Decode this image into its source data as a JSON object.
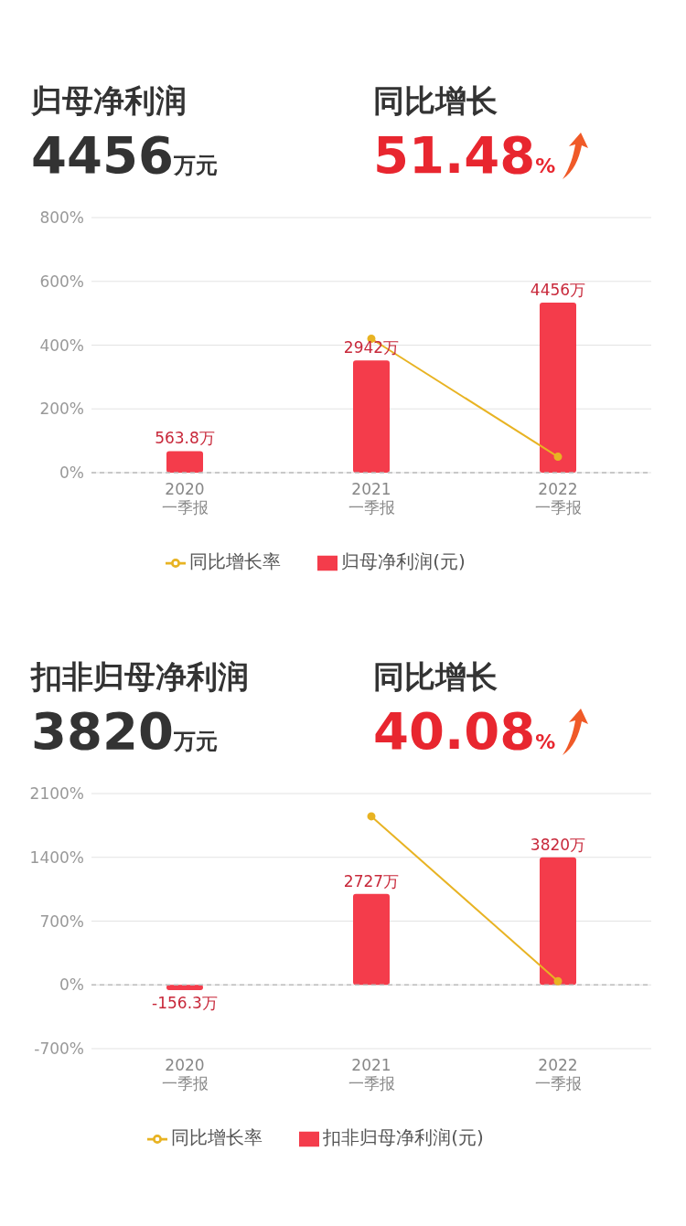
{
  "chart_data": [
    {
      "type": "bar",
      "title": "归母净利润",
      "annotations": [
        "4456万元",
        "同比增长",
        "51.48%"
      ],
      "categories": [
        "2020\n一季报",
        "2021\n一季报",
        "2022\n一季报"
      ],
      "series": [
        {
          "name": "归母净利润(元)",
          "axis": "y2",
          "color": "#f43c4b",
          "values": [
            563.8,
            2942,
            4456
          ],
          "value_labels": [
            "563.8万",
            "2942万",
            "4456万"
          ]
        },
        {
          "name": "同比增长率",
          "type": "line",
          "axis": "y",
          "color": "#e8b323",
          "values": [
            null,
            420,
            50
          ]
        }
      ],
      "ylim": [
        0,
        800
      ],
      "yticks": [
        {
          "value": 0,
          "label": "0%"
        },
        {
          "value": 200,
          "label": "200%"
        },
        {
          "value": 400,
          "label": "400%"
        },
        {
          "value": 600,
          "label": "600%"
        },
        {
          "value": 800,
          "label": "800%"
        }
      ],
      "ref_lines": [
        {
          "axis": "y",
          "value": 0,
          "label": null,
          "color": "#bbbbbb",
          "line_style": "dashed"
        }
      ],
      "grid": "y",
      "legend": "bottom",
      "marker": "circle"
    },
    {
      "type": "bar",
      "title": "扣非归母净利润",
      "annotations": [
        "3820万元",
        "同比增长",
        "40.08%"
      ],
      "categories": [
        "2020\n一季报",
        "2021\n一季报",
        "2022\n一季报"
      ],
      "series": [
        {
          "name": "扣非归母净利润(元)",
          "axis": "y2",
          "color": "#f43c4b",
          "values": [
            -156.3,
            2727,
            3820
          ],
          "value_labels": [
            "-156.3万",
            "2727万",
            "3820万"
          ]
        },
        {
          "name": "同比增长率",
          "type": "line",
          "axis": "y",
          "color": "#e8b323",
          "values": [
            null,
            1850,
            40
          ]
        }
      ],
      "ylim": [
        -700,
        2100
      ],
      "yticks": [
        {
          "value": -700,
          "label": "-700%"
        },
        {
          "value": 0,
          "label": "0%"
        },
        {
          "value": 700,
          "label": "700%"
        },
        {
          "value": 1400,
          "label": "1400%"
        },
        {
          "value": 2100,
          "label": "2100%"
        }
      ],
      "ref_lines": [
        {
          "axis": "y",
          "value": 0,
          "label": null,
          "color": "#bbbbbb",
          "line_style": "dashed"
        }
      ],
      "grid": "y",
      "legend": "bottom",
      "marker": "circle"
    }
  ]
}
